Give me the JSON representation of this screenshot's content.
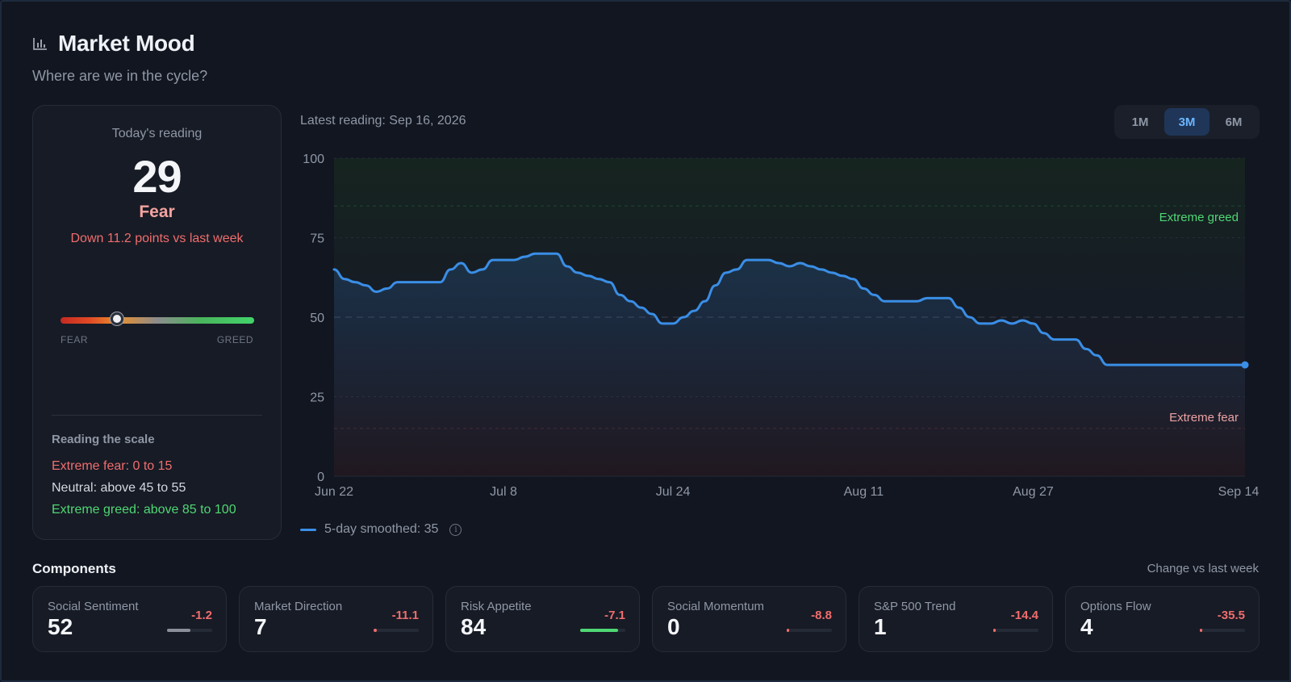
{
  "header": {
    "title": "Market Mood",
    "subtitle": "Where are we in the cycle?",
    "icon": "bar-chart-icon"
  },
  "reading": {
    "label": "Today's reading",
    "value": "29",
    "mood": "Fear",
    "change": "Down 11.2 points vs last week",
    "gauge_value": 29,
    "gauge_fear_label": "FEAR",
    "gauge_greed_label": "GREED",
    "scale_title": "Reading the scale",
    "scale_fear": "Extreme fear: 0 to 15",
    "scale_neutral": "Neutral: above 45 to 55",
    "scale_greed": "Extreme greed: above 85 to 100"
  },
  "chart_header": {
    "latest": "Latest reading: Sep 16, 2026",
    "ranges": [
      "1M",
      "3M",
      "6M"
    ],
    "active_range": "3M"
  },
  "legend": {
    "label": "5-day smoothed: 35"
  },
  "chart_data": {
    "type": "area",
    "x": [
      "Jun 22",
      "Jun 23",
      "Jun 24",
      "Jun 25",
      "Jun 26",
      "Jun 27",
      "Jun 28",
      "Jun 29",
      "Jun 30",
      "Jul 1",
      "Jul 2",
      "Jul 3",
      "Jul 4",
      "Jul 5",
      "Jul 6",
      "Jul 7",
      "Jul 8",
      "Jul 9",
      "Jul 10",
      "Jul 11",
      "Jul 12",
      "Jul 13",
      "Jul 14",
      "Jul 15",
      "Jul 16",
      "Jul 17",
      "Jul 18",
      "Jul 19",
      "Jul 20",
      "Jul 21",
      "Jul 22",
      "Jul 23",
      "Jul 24",
      "Jul 25",
      "Jul 26",
      "Jul 27",
      "Jul 28",
      "Jul 29",
      "Jul 30",
      "Jul 31",
      "Aug 1",
      "Aug 2",
      "Aug 3",
      "Aug 4",
      "Aug 5",
      "Aug 6",
      "Aug 7",
      "Aug 8",
      "Aug 9",
      "Aug 10",
      "Aug 11",
      "Aug 12",
      "Aug 13",
      "Aug 14",
      "Aug 15",
      "Aug 16",
      "Aug 17",
      "Aug 18",
      "Aug 19",
      "Aug 20",
      "Aug 21",
      "Aug 22",
      "Aug 23",
      "Aug 24",
      "Aug 25",
      "Aug 26",
      "Aug 27",
      "Aug 28",
      "Aug 29",
      "Aug 30",
      "Aug 31",
      "Sep 1",
      "Sep 2",
      "Sep 3",
      "Sep 4",
      "Sep 5",
      "Sep 6",
      "Sep 7",
      "Sep 8",
      "Sep 9",
      "Sep 10",
      "Sep 11",
      "Sep 12",
      "Sep 13",
      "Sep 14",
      "Sep 15",
      "Sep 16"
    ],
    "y": [
      65,
      62,
      61,
      60,
      58,
      59,
      61,
      61,
      61,
      61,
      61,
      65,
      67,
      64,
      65,
      68,
      68,
      68,
      69,
      70,
      70,
      70,
      66,
      64,
      63,
      62,
      61,
      57,
      55,
      53,
      51,
      48,
      48,
      50,
      52,
      55,
      60,
      64,
      65,
      68,
      68,
      68,
      67,
      66,
      67,
      66,
      65,
      64,
      63,
      62,
      59,
      57,
      55,
      55,
      55,
      55,
      56,
      56,
      56,
      53,
      50,
      48,
      48,
      49,
      48,
      49,
      48,
      45,
      43,
      43,
      43,
      40,
      38,
      35,
      35,
      35,
      35,
      35,
      35,
      35,
      35,
      35,
      35,
      35,
      35,
      35,
      35
    ],
    "x_ticks": [
      "Jun 22",
      "Jul 8",
      "Jul 24",
      "Aug 11",
      "Aug 27",
      "Sep 14"
    ],
    "y_ticks": [
      "0",
      "25",
      "50",
      "75",
      "100"
    ],
    "ylim": [
      0,
      100
    ],
    "zones": {
      "extreme_greed_label": "Extreme greed",
      "extreme_fear_label": "Extreme fear"
    },
    "colors": {
      "line": "#3a8ee6",
      "greed": "#4fd774",
      "fear": "#f06d6d"
    }
  },
  "components": {
    "title": "Components",
    "note": "Change vs last week",
    "items": [
      {
        "name": "Social Sentiment",
        "value": "52",
        "change": "-1.2",
        "level": 0.52,
        "color": "#8a8f99"
      },
      {
        "name": "Market Direction",
        "value": "7",
        "change": "-11.1",
        "level": 0.07,
        "color": "#f06d6d"
      },
      {
        "name": "Risk Appetite",
        "value": "84",
        "change": "-7.1",
        "level": 0.84,
        "color": "#4fd774"
      },
      {
        "name": "Social Momentum",
        "value": "0",
        "change": "-8.8",
        "level": 0.0,
        "color": "#f06d6d"
      },
      {
        "name": "S&P 500 Trend",
        "value": "1",
        "change": "-14.4",
        "level": 0.01,
        "color": "#f06d6d"
      },
      {
        "name": "Options Flow",
        "value": "4",
        "change": "-35.5",
        "level": 0.04,
        "color": "#f06d6d"
      }
    ]
  }
}
